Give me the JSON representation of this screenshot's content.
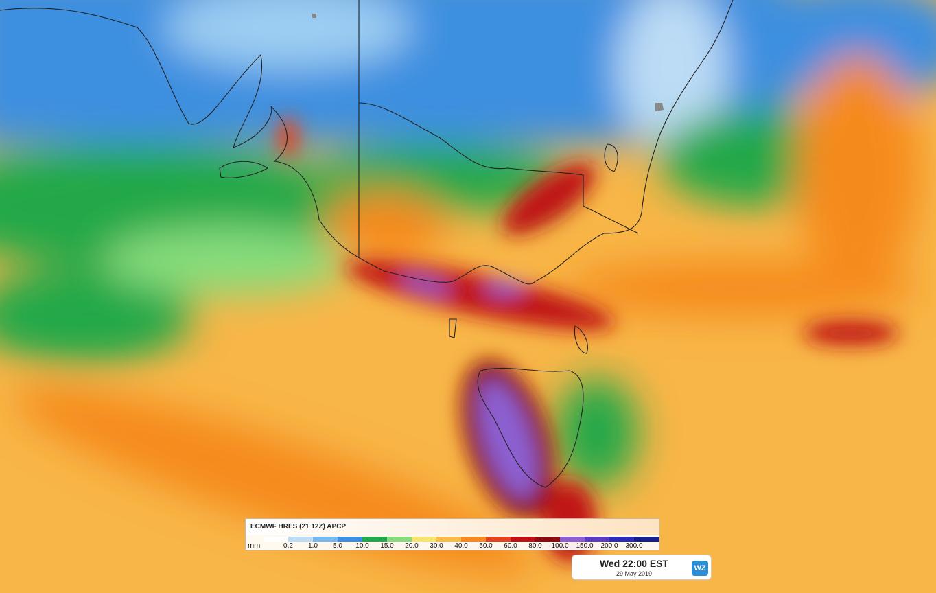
{
  "legend": {
    "title": "ECMWF HRES (21 12Z) APCP",
    "unit": "mm",
    "labels": [
      "0.2",
      "1.0",
      "5.0",
      "10.0",
      "15.0",
      "20.0",
      "30.0",
      "40.0",
      "50.0",
      "60.0",
      "80.0",
      "100.0",
      "150.0",
      "200.0",
      "300.0"
    ],
    "colors": [
      "#ffffff",
      "#bcdcf5",
      "#74b9ef",
      "#3c8fe0",
      "#22a84a",
      "#86dc7c",
      "#f7e46e",
      "#f9bb48",
      "#f58a1e",
      "#e4441c",
      "#c01212",
      "#8a0c0c",
      "#8c5ed0",
      "#5a3cc0",
      "#2c2cb8",
      "#16208c"
    ]
  },
  "timestamp": {
    "time": "Wed 22:00 EST",
    "date": "29 May 2019",
    "logo": "WZ"
  }
}
